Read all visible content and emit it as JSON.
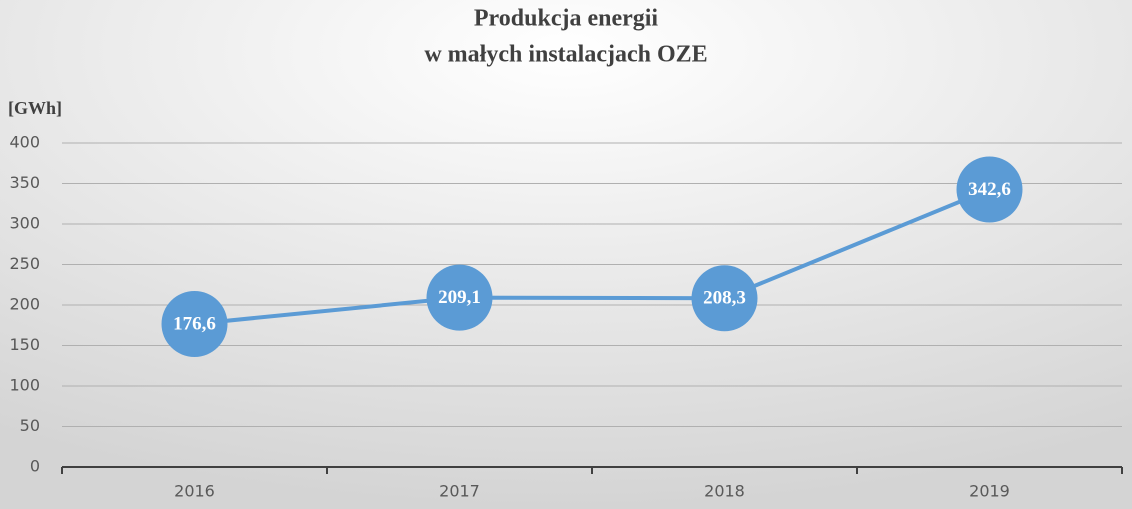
{
  "chart_data": {
    "type": "line",
    "title": [
      "Produkcja energii",
      "w małych instalacjach OZE"
    ],
    "y_label": "[GWh]",
    "categories": [
      "2016",
      "2017",
      "2018",
      "2019"
    ],
    "values": [
      176.6,
      209.1,
      208.3,
      342.6
    ],
    "value_labels": [
      "176,6",
      "209,1",
      "208,3",
      "342,6"
    ],
    "color": "#5b9bd5",
    "ylim": [
      0,
      400
    ],
    "yticks": [
      0,
      50,
      100,
      150,
      200,
      250,
      300,
      350,
      400
    ],
    "grid": true
  }
}
